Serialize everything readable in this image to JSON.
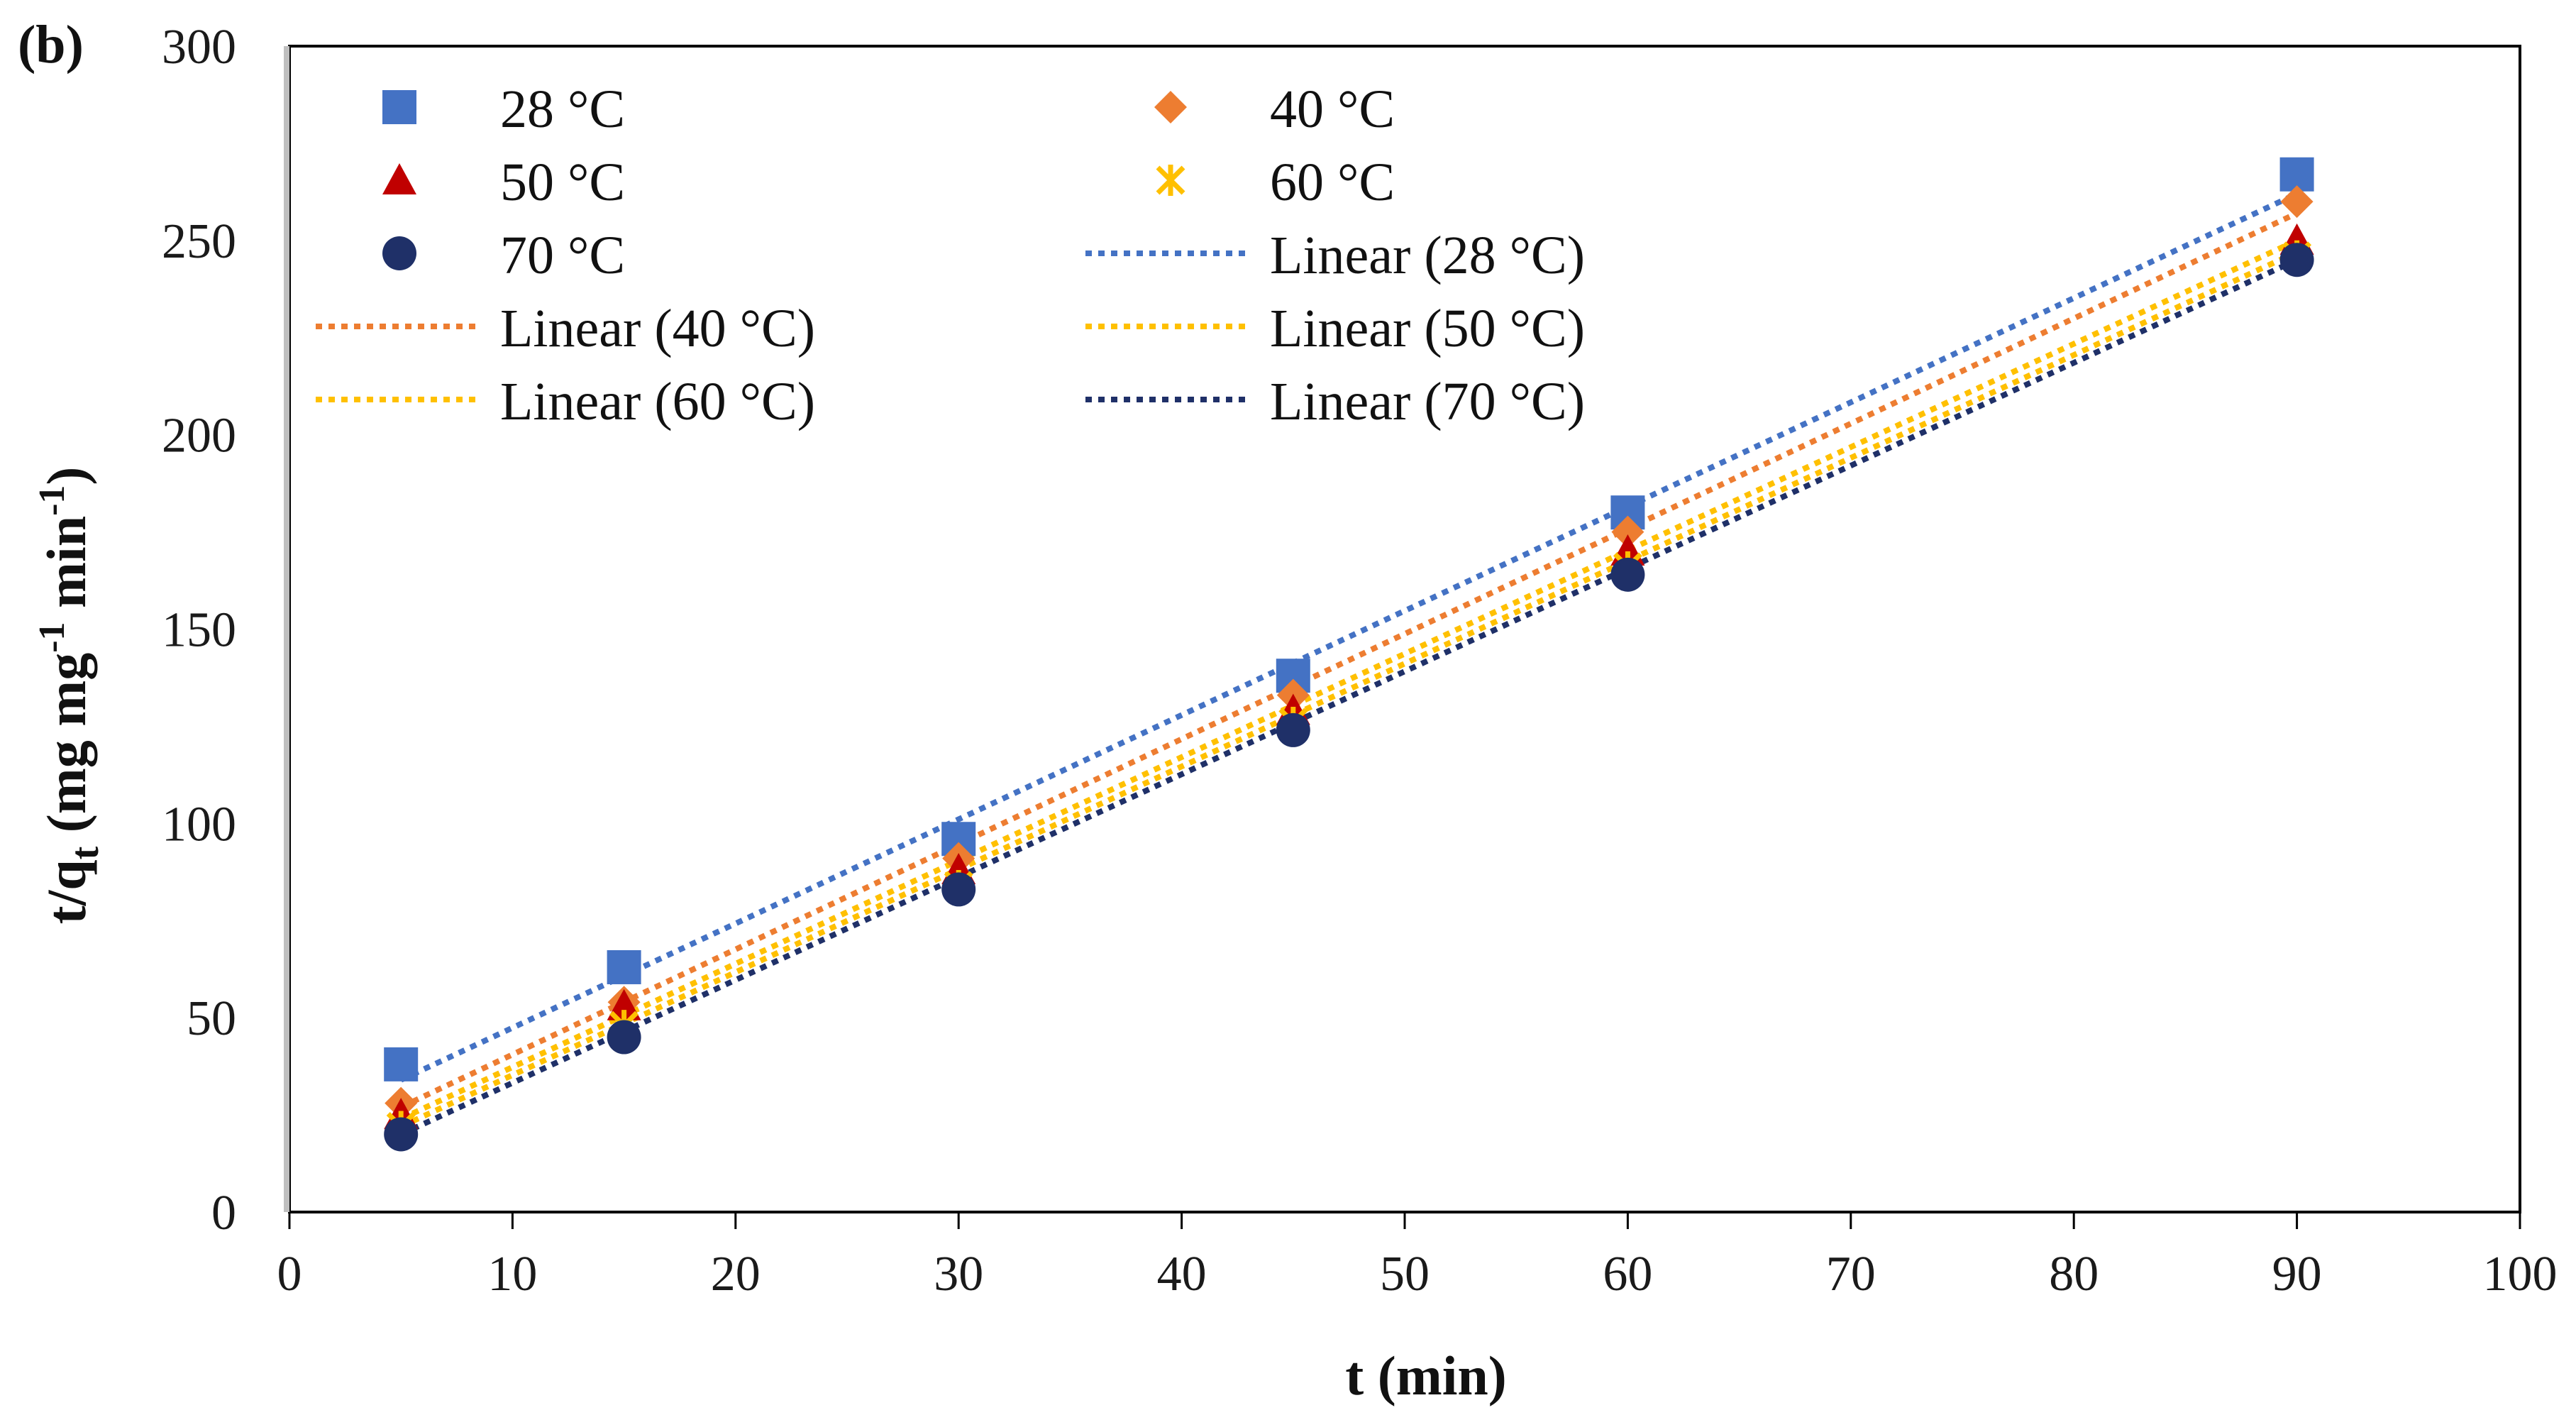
{
  "chart_data": {
    "type": "scatter",
    "panel_label": "(b)",
    "xlabel": "t (min)",
    "ylabel": {
      "base": "t/q",
      "sub": "t",
      "units_open": " (mg mg",
      "sup": "-1",
      "units_mid": " min",
      "sup2": "-1",
      "units_close": ")"
    },
    "xlim": [
      0,
      100
    ],
    "ylim": [
      0,
      300
    ],
    "x_ticks": [
      0,
      10,
      20,
      30,
      40,
      50,
      60,
      70,
      80,
      90,
      100
    ],
    "y_ticks": [
      0,
      50,
      100,
      150,
      200,
      250,
      300
    ],
    "grid": false,
    "legend_position": "top-left",
    "x": [
      5,
      15,
      30,
      45,
      60,
      90
    ],
    "series": [
      {
        "name": "28  °C",
        "marker": "square",
        "color": "#4472C4",
        "values": [
          38,
          63,
          96,
          138,
          180,
          267
        ],
        "fit_name": "Linear (28  °C)",
        "fit_color": "#4472C4",
        "fit_line": [
          5,
          34,
          90,
          262
        ]
      },
      {
        "name": "40  °C",
        "marker": "diamond",
        "color": "#ED7D31",
        "values": [
          28,
          54,
          91,
          133,
          175,
          260
        ],
        "fit_name": "Linear (40  °C)",
        "fit_color": "#ED7D31",
        "fit_line": [
          5,
          27,
          90,
          257
        ]
      },
      {
        "name": "50  °C",
        "marker": "triangle",
        "color": "#C00000",
        "values": [
          25,
          53,
          88,
          129,
          170,
          250
        ],
        "fit_name": "Linear (50  °C)",
        "fit_color": "#FFC000",
        "fit_line": [
          5,
          24,
          90,
          250
        ]
      },
      {
        "name": "60  °C",
        "marker": "star",
        "color": "#FFC000",
        "values": [
          22,
          48,
          84,
          126,
          166,
          246
        ],
        "fit_name": "Linear (60  °C)",
        "fit_color": "#FFC000",
        "fit_line": [
          5,
          22,
          90,
          247
        ]
      },
      {
        "name": "70  °C",
        "marker": "circle",
        "color": "#1F3068",
        "values": [
          20,
          45,
          83,
          124,
          164,
          245
        ],
        "fit_name": "Linear (70  °C)",
        "fit_color": "#1F3068",
        "fit_line": [
          5,
          20,
          90,
          245
        ]
      }
    ]
  }
}
